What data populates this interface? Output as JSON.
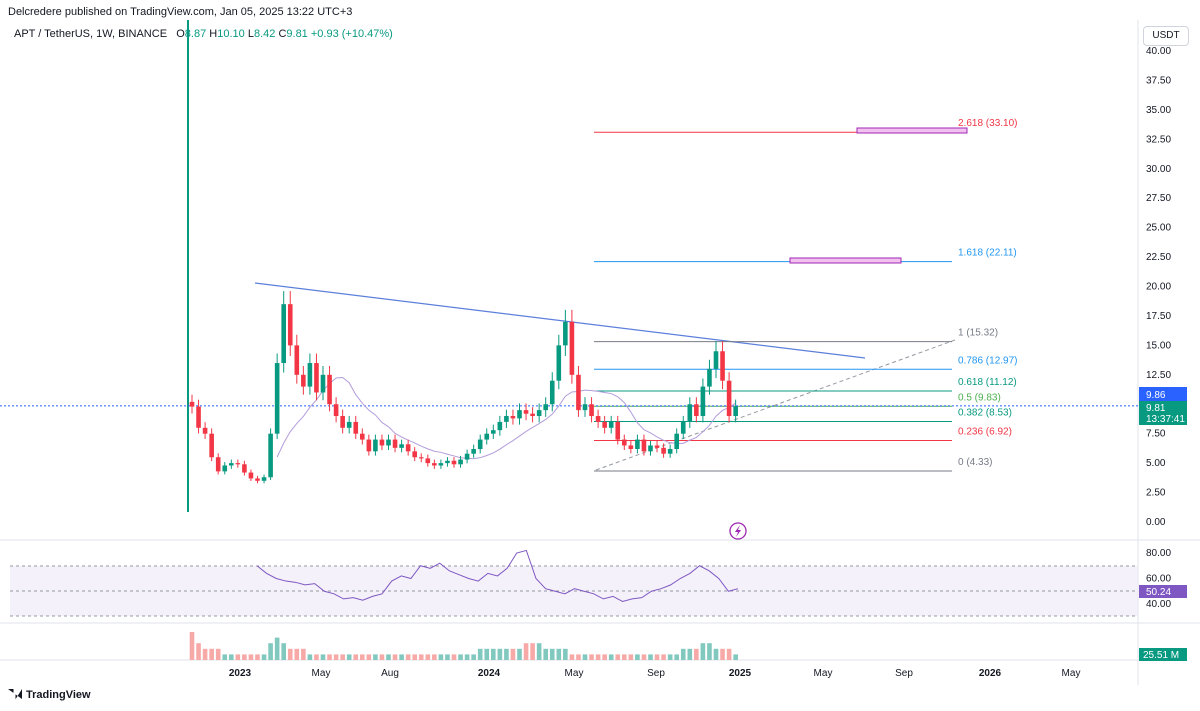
{
  "header": {
    "publisher": "Delcredere published on TradingView.com, Jan 05, 2025 13:22 UTC+3"
  },
  "legend": {
    "symbol": "APT / TetherUS, 1W, BINANCE",
    "open_label": "O",
    "open": "8.87",
    "high_label": "H",
    "high": "10.10",
    "low_label": "L",
    "low": "8.42",
    "close_label": "C",
    "close": "9.81",
    "change": "+0.93 (+10.47%)"
  },
  "currency": "USDT",
  "footer": {
    "logo": "TradingView"
  },
  "colors": {
    "up": "#089981",
    "down": "#f23645",
    "trend": "#5b7fdb",
    "ma": "#b39ddb",
    "last": "#2962ff",
    "rsi": "#7e57c2"
  },
  "price_badges": {
    "last": "9.86",
    "current": "9.81",
    "countdown": "13:37:41"
  },
  "rsi_badge": "50.24",
  "volume_badge": "25.51 M",
  "chart_data": [
    {
      "type": "candlestick",
      "y_ticks": [
        "40.00",
        "37.50",
        "35.00",
        "32.50",
        "30.00",
        "27.50",
        "25.00",
        "22.50",
        "20.00",
        "17.50",
        "15.00",
        "12.50",
        "10.00",
        "7.50",
        "5.00",
        "2.50",
        "0.00"
      ],
      "ylim": [
        0,
        40
      ],
      "x_ticks": [
        "2023",
        "May",
        "Aug",
        "2024",
        "May",
        "Sep",
        "2025",
        "May",
        "Sep",
        "2026",
        "May"
      ],
      "fib_levels": [
        {
          "label": "2.618 (33.10)",
          "value": 33.1,
          "color": "#f23645"
        },
        {
          "label": "1.618 (22.11)",
          "value": 22.11,
          "color": "#2196f3"
        },
        {
          "label": "1 (15.32)",
          "value": 15.32,
          "color": "#787b86"
        },
        {
          "label": "0.786 (12.97)",
          "value": 12.97,
          "color": "#2196f3"
        },
        {
          "label": "0.618 (11.12)",
          "value": 11.12,
          "color": "#089981"
        },
        {
          "label": "0.5 (9.83)",
          "value": 9.83,
          "color": "#4caf50"
        },
        {
          "label": "0.382 (8.53)",
          "value": 8.53,
          "color": "#089981"
        },
        {
          "label": "0.236 (6.92)",
          "value": 6.92,
          "color": "#f23645"
        },
        {
          "label": "0 (4.33)",
          "value": 4.33,
          "color": "#787b86"
        }
      ],
      "last_price": 9.86,
      "close_series": [
        9.8,
        8.0,
        7.5,
        5.5,
        4.3,
        4.8,
        5.0,
        4.9,
        4.2,
        3.7,
        3.5,
        3.8,
        7.5,
        13.5,
        18.5,
        15.0,
        12.5,
        11.5,
        13.5,
        11.0,
        12.5,
        10.0,
        9.0,
        8.0,
        8.5,
        7.5,
        7.0,
        6.0,
        7.0,
        6.5,
        7.0,
        6.3,
        6.6,
        6.0,
        5.5,
        5.4,
        5.0,
        4.8,
        5.0,
        5.2,
        4.9,
        5.3,
        5.8,
        6.2,
        7.0,
        7.5,
        7.8,
        8.5,
        9.0,
        8.8,
        9.5,
        9.2,
        9.0,
        9.5,
        10.0,
        12.0,
        15.0,
        17.0,
        12.5,
        9.5,
        10.0,
        9.0,
        8.5,
        8.0,
        8.5,
        7.0,
        6.5,
        6.2,
        7.0,
        6.0,
        6.5,
        6.3,
        5.8,
        6.2,
        7.5,
        8.5,
        10.0,
        9.0,
        11.5,
        13.0,
        14.5,
        12.0,
        9.0,
        9.81
      ]
    },
    {
      "type": "line",
      "name": "RSI",
      "y_ticks": [
        "80.00",
        "60.00",
        "40.00"
      ],
      "ylim": [
        30,
        85
      ],
      "values": [
        70,
        64,
        60,
        58,
        57,
        55,
        56,
        50,
        48,
        44,
        45,
        43,
        46,
        48,
        58,
        62,
        60,
        70,
        68,
        72,
        66,
        63,
        60,
        58,
        64,
        62,
        68,
        80,
        82,
        60,
        52,
        50,
        48,
        52,
        50,
        48,
        44,
        46,
        42,
        44,
        45,
        50,
        52,
        55,
        60,
        64,
        70,
        66,
        60,
        50,
        52
      ]
    },
    {
      "type": "bar",
      "name": "Volume",
      "values": [
        5,
        3,
        2,
        2,
        2,
        1,
        1,
        1,
        1,
        1,
        1,
        1,
        3,
        4,
        3,
        2,
        2,
        2,
        1,
        1,
        1,
        1,
        1,
        1,
        1,
        1,
        1,
        1,
        1,
        1,
        1,
        1,
        1,
        1,
        1,
        1,
        1,
        1,
        1,
        1,
        1,
        1,
        1,
        1,
        2,
        2,
        2,
        2,
        2,
        2,
        2,
        3,
        3,
        3,
        2,
        2,
        2,
        2,
        1,
        1,
        1,
        1,
        1,
        1,
        1,
        1,
        1,
        1,
        1,
        1,
        1,
        1,
        1,
        1,
        1,
        2,
        2,
        2,
        3,
        3,
        2,
        2,
        2,
        1
      ]
    }
  ]
}
